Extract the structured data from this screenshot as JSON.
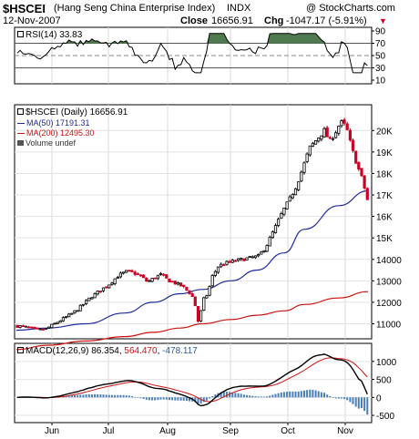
{
  "header": {
    "symbol": "$HSCEI",
    "name": "(Hang Seng China Enterprise Index)",
    "exchange": "INDX",
    "copyright": "@ StockCharts.com",
    "date": "12-Nov-2007",
    "close_label": "Close",
    "close_value": "16656.91",
    "chg_label": "Chg",
    "chg_value": "-1047.17 (-5.91%)",
    "chg_arrow": "▼"
  },
  "rsi": {
    "label": "RSI(14) 33.83",
    "ticks": [
      "90",
      "70",
      "50",
      "30",
      "10"
    ]
  },
  "main": {
    "legend": [
      {
        "text": "$HSCEI (Daily) 16656.91",
        "color": "#000000"
      },
      {
        "text": "MA(50) 17191.31",
        "color": "#1f2a9a"
      },
      {
        "text": "MA(200) 12495.30",
        "color": "#cc1111"
      },
      {
        "text": "Volume undef",
        "color": "#000000"
      }
    ],
    "yticks": [
      "20K",
      "19K",
      "18K",
      "17K",
      "16K",
      "15K",
      "14000",
      "13000",
      "12000",
      "11000"
    ]
  },
  "macd": {
    "label_prefix": "MACD(12,26,9)",
    "v1": "86.354",
    "v2": "564.470",
    "v3": "-478.117",
    "ticks": [
      "1000",
      "500",
      "0",
      "-500"
    ]
  },
  "xaxis": [
    "Jun",
    "Jul",
    "Aug",
    "Sep",
    "Oct",
    "Nov"
  ],
  "colors": {
    "up": "#000000",
    "down": "#cc0022",
    "ma50": "#1f2a9a",
    "ma200": "#cc1111",
    "hist": "#4a7fb8",
    "rsi_fill": "#4f7a4f"
  },
  "chart_data": {
    "type": "line",
    "title": "$HSCEI (Hang Seng China Enterprise Index)",
    "x": [
      "2007-05-21",
      "2007-06-01",
      "2007-06-15",
      "2007-07-02",
      "2007-07-16",
      "2007-08-01",
      "2007-08-17",
      "2007-09-03",
      "2007-09-17",
      "2007-10-02",
      "2007-10-15",
      "2007-10-30",
      "2007-11-12"
    ],
    "series": [
      {
        "name": "$HSCEI (Daily)",
        "values": [
          10900,
          10700,
          11100,
          12600,
          13500,
          12900,
          11000,
          13700,
          14500,
          16500,
          19500,
          20500,
          16657
        ]
      },
      {
        "name": "MA(50)",
        "values": [
          10700,
          10800,
          11000,
          11500,
          12000,
          12400,
          12600,
          13000,
          13500,
          14300,
          15400,
          16500,
          17191
        ]
      },
      {
        "name": "MA(200)",
        "values": [
          9800,
          10000,
          10200,
          10400,
          10600,
          10800,
          11000,
          11200,
          11400,
          11600,
          11900,
          12200,
          12495
        ]
      }
    ],
    "ylim": [
      10300,
      21200
    ],
    "rsi": {
      "last": 33.83,
      "ylim": [
        10,
        90
      ]
    },
    "macd": {
      "macd": 86.354,
      "signal": 564.47,
      "histogram": -478.117,
      "ylim": [
        -500,
        1000
      ]
    }
  }
}
